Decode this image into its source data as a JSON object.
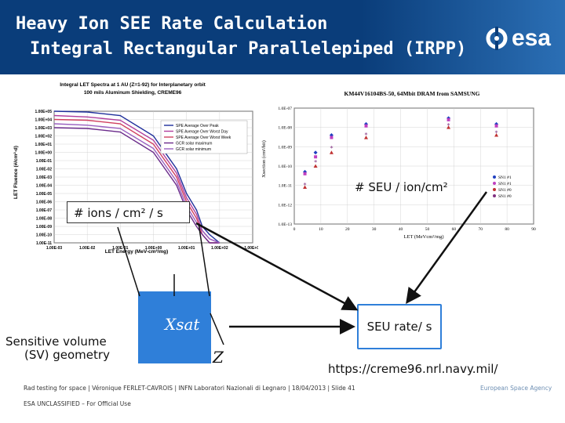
{
  "header": {
    "title_line1": "Heavy Ion SEE Rate Calculation",
    "title_line2": "Integral Rectangular Parallelepiped (IRPP)",
    "logo_text": "esa",
    "bg_color": "#0a3d7a"
  },
  "left_chart": {
    "title_line1": "Integral LET Spectra at 1 AU (Z=1-92) for Interplanetary orbit",
    "title_line2": "100 mils Aluminum Shielding, CREME96",
    "ylabel": "LET Fluence (#/cm²-d)",
    "xlabel": "LET Energy (MeV-cm²/mg)",
    "yticks": [
      "1.00E+05",
      "1.00E+04",
      "1.00E+03",
      "1.00E+02",
      "1.00E+01",
      "1.00E+00",
      "1.00E-01",
      "1.00E-02",
      "1.00E-03",
      "1.00E-04",
      "1.00E-05",
      "1.00E-06",
      "1.00E-07",
      "1.00E-08",
      "1.00E-09",
      "1.00E-10",
      "1.00E-11"
    ],
    "xticks": [
      "1.00E-03",
      "1.00E-02",
      "1.00E-01",
      "1.00E+00",
      "1.00E+01",
      "1.00E+02",
      "1.00E+03"
    ],
    "legend": [
      "SPE Average Over Peak",
      "SPE Average Over Worst Day",
      "SPE Average Over Worst Week",
      "GCR solar maximum",
      "GCR solar minimum"
    ],
    "overlay_label": "# ions / cm² / s"
  },
  "right_chart": {
    "title": "KM44V16104BS-50, 64Mbit DRAM from SAMSUNG",
    "ylabel": "Xsection (cm²/bit)",
    "xlabel": "LET (MeVcm²/mg)",
    "yticks": [
      "1.0E-07",
      "1.0E-08",
      "1.0E-09",
      "1.0E-10",
      "1.0E-11",
      "1.0E-12",
      "1.0E-13"
    ],
    "xticks": [
      "0",
      "10",
      "20",
      "30",
      "40",
      "50",
      "60",
      "70",
      "80",
      "90"
    ],
    "legend": [
      "SN1 #1",
      "SN1 #1",
      "SN1 #0",
      "SN1 #0"
    ],
    "overlay_label": "# SEU / ion/cm²"
  },
  "chart_data": [
    {
      "type": "line",
      "title": "Integral LET Spectra at 1 AU (Z=1-92) for Interplanetary orbit",
      "xlabel": "LET Energy (MeV-cm²/mg)",
      "ylabel": "LET Fluence (#/cm²-d)",
      "x_scale": "log",
      "y_scale": "log",
      "x": [
        0.001,
        0.01,
        0.1,
        1,
        5,
        10,
        20,
        30,
        50,
        100
      ],
      "series": [
        {
          "name": "SPE Average Over Peak",
          "color": "#1f2f9b",
          "values": [
            100000.0,
            80000.0,
            30000.0,
            100.0,
            0.01,
            1e-05,
            1e-07,
            1e-09,
            1e-10,
            1e-11
          ]
        },
        {
          "name": "SPE Average Over Worst Day",
          "color": "#b0409e",
          "values": [
            30000.0,
            20000.0,
            8000.0,
            30.0,
            0.003,
            3e-06,
            3e-08,
            3e-10,
            3e-11,
            1e-11
          ]
        },
        {
          "name": "SPE Average Over Worst Week",
          "color": "#d04060",
          "values": [
            10000.0,
            8000.0,
            3000.0,
            10.0,
            0.001,
            1e-06,
            1e-08,
            1e-10,
            1e-11,
            1e-11
          ]
        },
        {
          "name": "GCR solar maximum",
          "color": "#6a2a8a",
          "values": [
            1000.0,
            800.0,
            300.0,
            1.0,
            0.0001,
            1e-07,
            1e-09,
            1e-10,
            1e-11,
            1e-11
          ]
        },
        {
          "name": "GCR solar minimum",
          "color": "#9a60c0",
          "values": [
            3000.0,
            2000.0,
            800.0,
            3.0,
            0.0003,
            3e-07,
            3e-09,
            3e-10,
            3e-11,
            1e-11
          ]
        }
      ],
      "xlim": [
        0.001,
        1000
      ],
      "ylim": [
        1e-11,
        100000.0
      ]
    },
    {
      "type": "scatter",
      "title": "KM44V16104BS-50, 64Mbit DRAM from SAMSUNG",
      "xlabel": "LET (MeVcm²/mg)",
      "ylabel": "Xsection (cm²/bit)",
      "y_scale": "log",
      "xlim": [
        0,
        90
      ],
      "ylim": [
        1e-13,
        1e-07
      ],
      "series": [
        {
          "name": "SN1 #1",
          "color": "#2040c0",
          "marker": "diamond",
          "points": [
            [
              4,
              5e-11
            ],
            [
              8,
              5e-10
            ],
            [
              14,
              4e-09
            ],
            [
              27,
              1.5e-08
            ],
            [
              58,
              3e-08
            ],
            [
              76,
              1.5e-08
            ]
          ]
        },
        {
          "name": "SN1 #1",
          "color": "#c040c0",
          "marker": "square",
          "points": [
            [
              4,
              4e-11
            ],
            [
              8,
              3e-10
            ],
            [
              14,
              3e-09
            ],
            [
              27,
              1.2e-08
            ],
            [
              58,
              2.5e-08
            ],
            [
              76,
              1.2e-08
            ]
          ]
        },
        {
          "name": "SN1 #0",
          "color": "#c03030",
          "marker": "triangle",
          "points": [
            [
              4,
              8e-12
            ],
            [
              8,
              1e-10
            ],
            [
              14,
              5e-10
            ],
            [
              27,
              3e-09
            ],
            [
              58,
              1e-08
            ],
            [
              76,
              4e-09
            ]
          ]
        },
        {
          "name": "SN1 #0",
          "color": "#803080",
          "marker": "star",
          "points": [
            [
              4,
              1e-11
            ],
            [
              8,
              1.5e-10
            ],
            [
              14,
              8e-10
            ],
            [
              27,
              4e-09
            ],
            [
              58,
              1.2e-08
            ],
            [
              76,
              5e-09
            ]
          ]
        }
      ]
    }
  ],
  "diagram": {
    "sv_label_line1": "Sensitive volume",
    "sv_label_line2": "(SV) geometry",
    "xsat_label": "Xsat",
    "z_label": "Z",
    "seu_rate_label": "SEU rate/ s",
    "url": "https://creme96.nrl.navy.mil/",
    "box_color": "#2f7fd9"
  },
  "footer": {
    "text": "Rad testing for space | Véronique FERLET-CAVROIS | INFN Laboratori Nazionali di Legnaro | 18/04/2013 | Slide 41",
    "classification": "ESA UNCLASSIFIED – For Official Use",
    "agency": "European Space Agency"
  }
}
